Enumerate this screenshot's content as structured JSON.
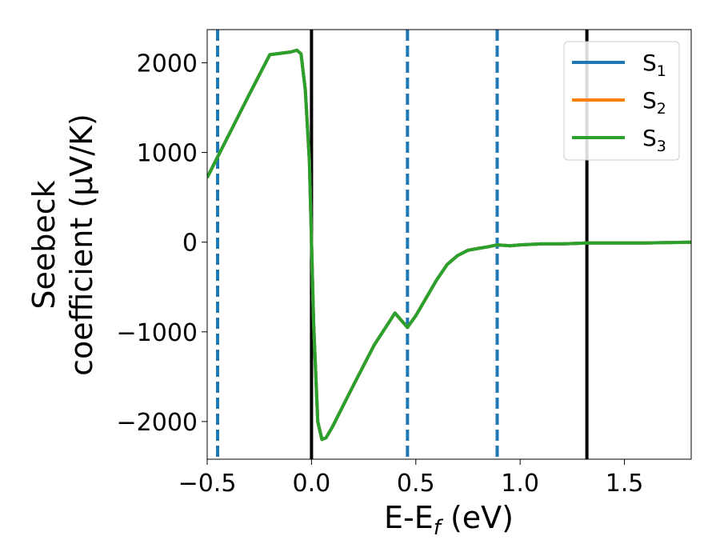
{
  "chart_data": {
    "type": "line",
    "xlabel": "E-E",
    "xlabel_sub": "f",
    "xlabel_unit": " (eV)",
    "ylabel_line1": "Seebeck",
    "ylabel_line2": "coefficient  (μV/K)",
    "xlim": [
      -0.5,
      1.82
    ],
    "ylim": [
      -2420,
      2370
    ],
    "xticks": [
      -0.5,
      0.0,
      0.5,
      1.0,
      1.5
    ],
    "xtick_labels": [
      "−0.5",
      "0.0",
      "0.5",
      "1.0",
      "1.5"
    ],
    "yticks": [
      2000,
      1000,
      0,
      -1000,
      -2000
    ],
    "ytick_labels": [
      "2000",
      "1000",
      "0",
      "−1000",
      "−2000"
    ],
    "grid": false,
    "legend": {
      "placement": "top-right",
      "entries": [
        {
          "base": "S",
          "sub": "1",
          "color": "#1f77b4"
        },
        {
          "base": "S",
          "sub": "2",
          "color": "#ff7f0e"
        },
        {
          "base": "S",
          "sub": "3",
          "color": "#2ca02c"
        }
      ]
    },
    "vlines": [
      {
        "x": -0.45,
        "style": "dashed",
        "color": "#1f77b4"
      },
      {
        "x": 0.0,
        "style": "solid",
        "color": "#000000"
      },
      {
        "x": 0.46,
        "style": "dashed",
        "color": "#1f77b4"
      },
      {
        "x": 0.89,
        "style": "dashed",
        "color": "#1f77b4"
      },
      {
        "x": 1.32,
        "style": "solid",
        "color": "#000000"
      }
    ],
    "series": [
      {
        "name": "S1",
        "color": "#1f77b4",
        "x": [
          -0.5,
          -0.45,
          -0.4,
          -0.3,
          -0.2,
          -0.1,
          -0.07,
          -0.05,
          -0.03,
          -0.01,
          0.0,
          0.01,
          0.03,
          0.05,
          0.07,
          0.1,
          0.2,
          0.3,
          0.4,
          0.46,
          0.5,
          0.6,
          0.65,
          0.7,
          0.75,
          0.8,
          0.85,
          0.89,
          0.95,
          1.0,
          1.1,
          1.2,
          1.32,
          1.4,
          1.5,
          1.6,
          1.7,
          1.82
        ],
        "y": [
          720,
          950,
          1180,
          1640,
          2090,
          2120,
          2140,
          2100,
          1700,
          900,
          0,
          -900,
          -2000,
          -2200,
          -2180,
          -2060,
          -1600,
          -1150,
          -790,
          -950,
          -820,
          -420,
          -250,
          -150,
          -90,
          -70,
          -50,
          -30,
          -40,
          -30,
          -20,
          -20,
          -10,
          -10,
          -10,
          -10,
          -5,
          0
        ]
      },
      {
        "name": "S2",
        "color": "#ff7f0e",
        "x": [
          -0.5,
          -0.45,
          -0.4,
          -0.3,
          -0.2,
          -0.1,
          -0.07,
          -0.05,
          -0.03,
          -0.01,
          0.0,
          0.01,
          0.03,
          0.05,
          0.07,
          0.1,
          0.2,
          0.3,
          0.4,
          0.46,
          0.5,
          0.6,
          0.65,
          0.7,
          0.75,
          0.8,
          0.85,
          0.89,
          0.95,
          1.0,
          1.1,
          1.2,
          1.32,
          1.4,
          1.5,
          1.6,
          1.7,
          1.82
        ],
        "y": [
          720,
          950,
          1180,
          1640,
          2090,
          2120,
          2140,
          2100,
          1700,
          900,
          0,
          -900,
          -2000,
          -2200,
          -2180,
          -2060,
          -1600,
          -1150,
          -790,
          -950,
          -820,
          -420,
          -250,
          -150,
          -90,
          -70,
          -50,
          -30,
          -40,
          -30,
          -20,
          -20,
          -10,
          -10,
          -10,
          -10,
          -5,
          0
        ]
      },
      {
        "name": "S3",
        "color": "#2ca02c",
        "x": [
          -0.5,
          -0.45,
          -0.4,
          -0.3,
          -0.2,
          -0.1,
          -0.07,
          -0.05,
          -0.03,
          -0.01,
          0.0,
          0.01,
          0.03,
          0.05,
          0.07,
          0.1,
          0.2,
          0.3,
          0.4,
          0.46,
          0.5,
          0.6,
          0.65,
          0.7,
          0.75,
          0.8,
          0.85,
          0.89,
          0.95,
          1.0,
          1.1,
          1.2,
          1.32,
          1.4,
          1.5,
          1.6,
          1.7,
          1.82
        ],
        "y": [
          720,
          950,
          1180,
          1640,
          2090,
          2120,
          2140,
          2100,
          1700,
          900,
          0,
          -900,
          -2000,
          -2200,
          -2180,
          -2060,
          -1600,
          -1150,
          -790,
          -950,
          -820,
          -420,
          -250,
          -150,
          -90,
          -70,
          -50,
          -30,
          -40,
          -30,
          -20,
          -20,
          -10,
          -10,
          -10,
          -10,
          -5,
          0
        ]
      }
    ]
  }
}
